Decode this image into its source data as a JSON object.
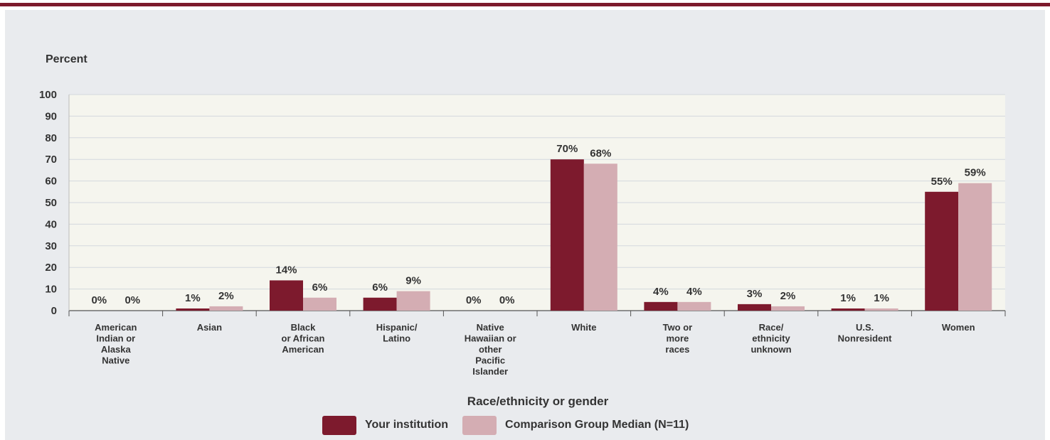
{
  "chart_data": {
    "type": "bar",
    "ylabel": "Percent",
    "xlabel": "Race/ethnicity or gender",
    "ylim": [
      0,
      100
    ],
    "yticks": [
      "0",
      "10",
      "20",
      "30",
      "40",
      "50",
      "60",
      "70",
      "80",
      "90",
      "100"
    ],
    "categories": [
      [
        "American",
        "Indian or",
        "Alaska",
        "Native"
      ],
      [
        "Asian"
      ],
      [
        "Black",
        "or African",
        "American"
      ],
      [
        "Hispanic/",
        "Latino"
      ],
      [
        "Native",
        "Hawaiian or",
        "other",
        "Pacific",
        "Islander"
      ],
      [
        "White"
      ],
      [
        "Two or",
        "more",
        "races"
      ],
      [
        "Race/",
        "ethnicity",
        "unknown"
      ],
      [
        "U.S.",
        "Nonresident"
      ],
      [
        "Women"
      ]
    ],
    "series": [
      {
        "name": "Your institution",
        "color": "#7d1a2d",
        "values": [
          0,
          1,
          14,
          6,
          0,
          70,
          4,
          3,
          1,
          55
        ],
        "labels": [
          "0%",
          "1%",
          "14%",
          "6%",
          "0%",
          "70%",
          "4%",
          "3%",
          "1%",
          "55%"
        ]
      },
      {
        "name": "Comparison Group Median (N=11)",
        "color": "#d4adb3",
        "values": [
          0,
          2,
          6,
          9,
          0,
          68,
          4,
          2,
          1,
          59
        ],
        "labels": [
          "0%",
          "2%",
          "6%",
          "9%",
          "0%",
          "68%",
          "4%",
          "2%",
          "1%",
          "59%"
        ]
      }
    ],
    "grid": true,
    "legend_position": "bottom"
  }
}
